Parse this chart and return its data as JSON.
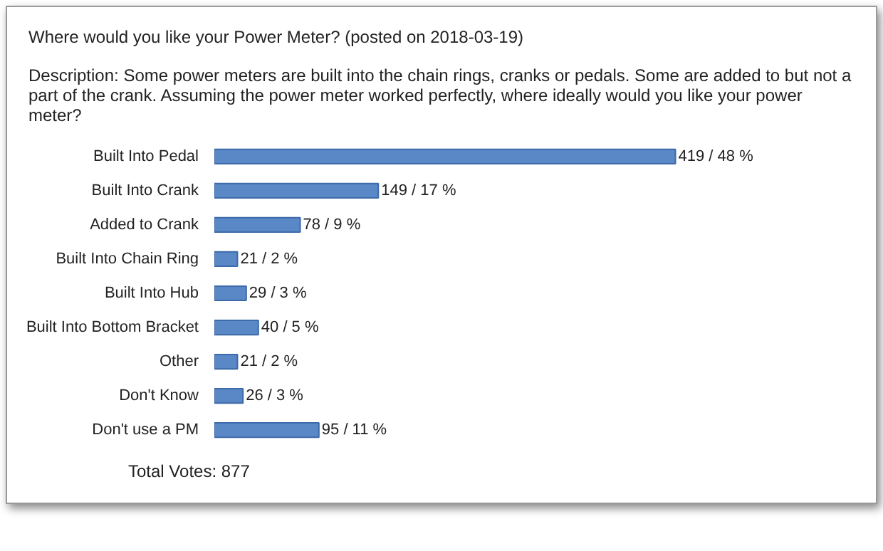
{
  "chart_data": {
    "type": "bar",
    "orientation": "horizontal",
    "title": "Where would you like your Power Meter? (posted on 2018-03-19)",
    "subtitle": "Description: Some power meters are built into the chain rings, cranks or pedals. Some are added to but not a part of the crank. Assuming the power meter worked perfectly, where ideally would you like your power meter?",
    "categories": [
      "Built Into Pedal",
      "Built Into Crank",
      "Added to Crank",
      "Built Into Chain Ring",
      "Built Into Hub",
      "Built Into Bottom Bracket",
      "Other",
      "Don't Know",
      "Don't use a PM"
    ],
    "values": [
      419,
      149,
      78,
      21,
      29,
      40,
      21,
      26,
      95
    ],
    "value_labels": [
      "419 / 48 %",
      "149 / 17 %",
      "78 / 9 %",
      "21 / 2 %",
      "29 / 3 %",
      "40 / 5 %",
      "21 / 2 %",
      "26 / 3 %",
      "95 / 11 %"
    ],
    "color": "#5a87c5",
    "annotations": [
      "Total Votes: 877"
    ],
    "grid": false
  }
}
